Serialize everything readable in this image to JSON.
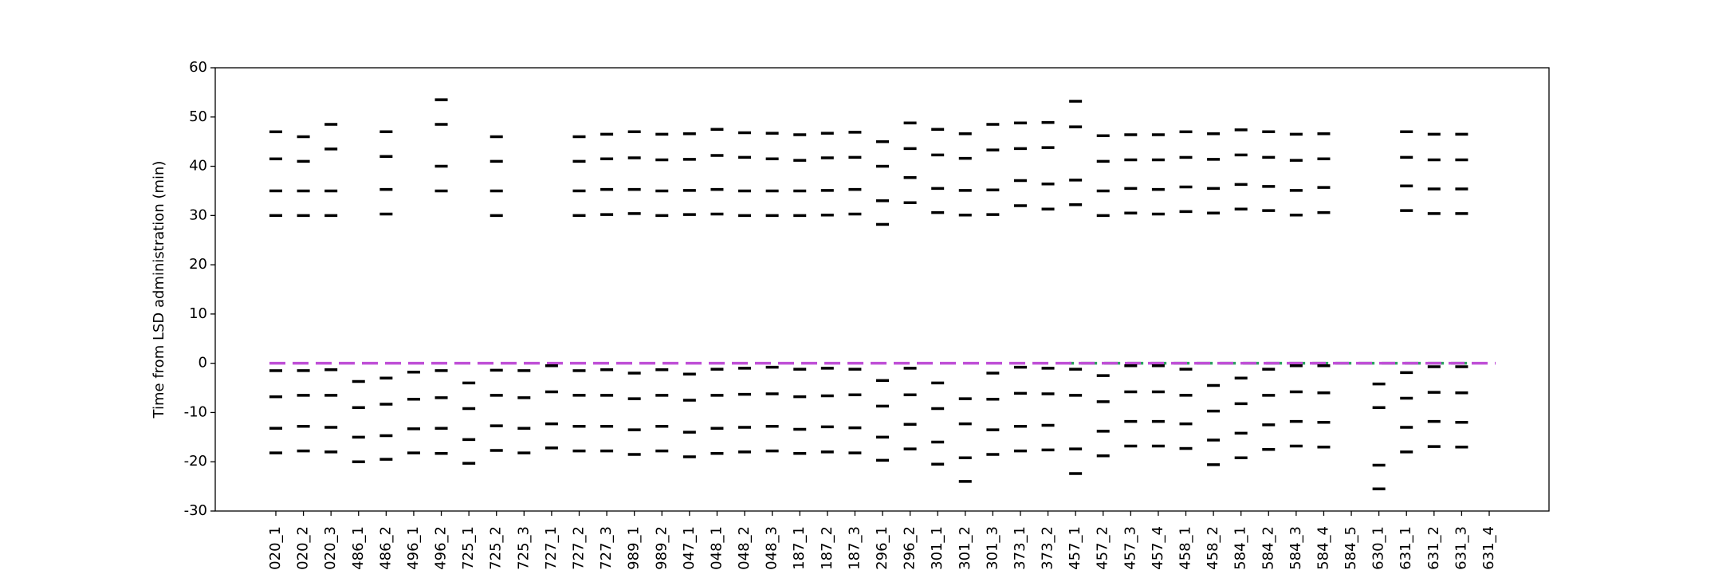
{
  "chart_data": {
    "type": "dash",
    "y_label": "Time from LSD administration (min)",
    "categories": [
      "020_1",
      "020_2",
      "020_3",
      "486_1",
      "486_2",
      "496_1",
      "496_2",
      "725_1",
      "725_2",
      "725_3",
      "727_1",
      "727_2",
      "727_3",
      "989_1",
      "989_2",
      "047_1",
      "048_1",
      "048_2",
      "048_3",
      "187_1",
      "187_2",
      "187_3",
      "296_1",
      "296_2",
      "301_1",
      "301_2",
      "301_3",
      "373_1",
      "373_2",
      "457_1",
      "457_2",
      "457_3",
      "457_4",
      "458_1",
      "458_2",
      "584_1",
      "584_2",
      "584_3",
      "584_4",
      "584_5",
      "630_1",
      "631_1",
      "631_2",
      "631_3",
      "631_4"
    ],
    "values": [
      [
        47,
        41.5,
        35,
        30,
        -1.5,
        -6.8,
        -13.2,
        -18.2
      ],
      [
        46,
        41,
        35,
        30,
        -1.5,
        -6.5,
        -12.8,
        -17.8
      ],
      [
        48.5,
        43.5,
        35,
        30,
        -1.3,
        -6.5,
        -13,
        -18
      ],
      [
        -3.7,
        -9,
        -15,
        -20
      ],
      [
        47,
        42,
        35.3,
        30.3,
        -3,
        -8.3,
        -14.7,
        -19.5
      ],
      [
        -1.8,
        -7.3,
        -13.3,
        -18.2
      ],
      [
        53.5,
        48.5,
        40,
        35,
        -1.5,
        -7,
        -13.2,
        -18.3
      ],
      [
        -4,
        -9.2,
        -15.5,
        -20.3
      ],
      [
        46,
        41,
        35,
        30,
        -1.4,
        -6.5,
        -12.7,
        -17.7
      ],
      [
        -1.5,
        -7,
        -13.2,
        -18.2
      ],
      [
        -0.5,
        -5.8,
        -12.3,
        -17.2
      ],
      [
        46,
        41,
        35,
        30,
        -1.5,
        -6.5,
        -12.8,
        -17.8
      ],
      [
        46.5,
        41.5,
        35.3,
        30.2,
        -1.3,
        -6.5,
        -12.8,
        -17.8
      ],
      [
        47,
        41.7,
        35.3,
        30.4,
        -2,
        -7.2,
        -13.5,
        -18.5
      ],
      [
        46.5,
        41.3,
        35,
        30,
        -1.3,
        -6.5,
        -12.8,
        -17.8
      ],
      [
        46.6,
        41.4,
        35.1,
        30.2,
        -2.2,
        -7.5,
        -14,
        -19
      ],
      [
        47.5,
        42.2,
        35.3,
        30.3,
        -1.2,
        -6.5,
        -13.2,
        -18.3
      ],
      [
        46.8,
        41.8,
        35,
        30,
        -1,
        -6.3,
        -13,
        -18
      ],
      [
        46.7,
        41.5,
        35,
        30,
        -0.8,
        -6.2,
        -12.8,
        -17.8
      ],
      [
        46.4,
        41.2,
        35,
        30,
        -1.2,
        -6.8,
        -13.4,
        -18.3
      ],
      [
        46.7,
        41.7,
        35.1,
        30.1,
        -1,
        -6.6,
        -12.9,
        -18
      ],
      [
        46.9,
        41.8,
        35.3,
        30.3,
        -1.2,
        -6.4,
        -13.1,
        -18.2
      ],
      [
        45,
        40,
        33,
        28.2,
        -3.5,
        -8.7,
        -15,
        -19.7
      ],
      [
        48.8,
        43.6,
        37.7,
        32.6,
        -1,
        -6.4,
        -12.4,
        -17.4
      ],
      [
        47.5,
        42.3,
        35.5,
        30.6,
        -4,
        -9.2,
        -16,
        -20.5
      ],
      [
        46.6,
        41.6,
        35.1,
        30.1,
        -7.2,
        -12.3,
        -19.2,
        -24
      ],
      [
        48.5,
        43.3,
        35.2,
        30.2,
        -2,
        -7.3,
        -13.5,
        -18.5
      ],
      [
        48.8,
        43.6,
        37.1,
        32,
        -0.8,
        -6.1,
        -12.8,
        -17.8
      ],
      [
        48.9,
        43.8,
        36.4,
        31.3,
        -1,
        -6.2,
        -12.6,
        -17.6
      ],
      [
        53.2,
        48,
        37.2,
        32.2,
        -1.2,
        -6.5,
        -17.4,
        -22.4
      ],
      [
        46.2,
        41,
        35,
        30,
        -2.5,
        -7.8,
        -13.8,
        -18.8
      ],
      [
        46.4,
        41.3,
        35.5,
        30.5,
        -0.5,
        -5.8,
        -11.8,
        -16.8
      ],
      [
        46.4,
        41.3,
        35.3,
        30.3,
        -0.5,
        -5.8,
        -11.8,
        -16.8
      ],
      [
        47,
        41.8,
        35.8,
        30.8,
        -1.2,
        -6.5,
        -12.3,
        -17.3
      ],
      [
        46.6,
        41.4,
        35.5,
        30.5,
        -4.5,
        -9.7,
        -15.6,
        -20.6
      ],
      [
        47.4,
        42.3,
        36.3,
        31.3,
        -3,
        -8.2,
        -14.2,
        -19.2
      ],
      [
        47,
        41.8,
        35.9,
        31,
        -1.2,
        -6.5,
        -12.5,
        -17.5
      ],
      [
        46.5,
        41.2,
        35.1,
        30.1,
        -0.5,
        -5.8,
        -11.8,
        -16.8
      ],
      [
        46.6,
        41.5,
        35.7,
        30.6,
        -0.5,
        -6,
        -12,
        -17
      ],
      [],
      [
        -4.2,
        -9,
        -20.7,
        -25.5
      ],
      [
        47,
        41.8,
        36,
        31,
        -1.9,
        -7.1,
        -13,
        -18
      ],
      [
        46.5,
        41.3,
        35.4,
        30.4,
        -0.7,
        -5.9,
        -11.8,
        -16.9
      ],
      [
        46.5,
        41.3,
        35.4,
        30.4,
        -0.7,
        -6,
        -12,
        -17
      ],
      []
    ],
    "color": "#000000",
    "hlines": [
      {
        "y": 0,
        "color": "#2ca25f",
        "x": [
          29,
          43
        ]
      },
      {
        "y": 0,
        "color": "#bf4fd6",
        "x": [
          0,
          44
        ]
      }
    ],
    "ylim": [
      -30,
      60
    ],
    "yticks": [
      60,
      50,
      40,
      30,
      20,
      10,
      0,
      -10,
      -20,
      -30
    ]
  }
}
